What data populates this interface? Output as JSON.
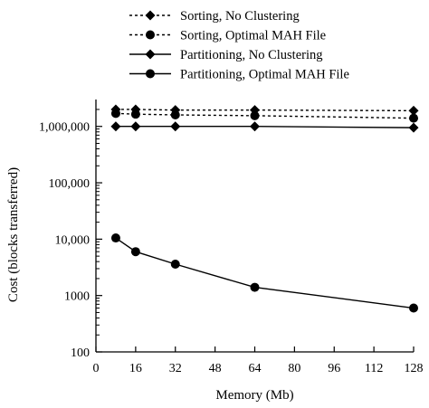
{
  "chart_data": {
    "type": "line",
    "xlabel": "Memory (Mb)",
    "ylabel": "Cost (blocks transferred)",
    "y_scale": "log",
    "xlim": [
      0,
      128
    ],
    "ylim": [
      100,
      3000000
    ],
    "grid": false,
    "legend_position": "top",
    "x_ticks": [
      0,
      16,
      32,
      48,
      64,
      80,
      96,
      112,
      128
    ],
    "x_tick_labels": [
      "0",
      "16",
      "32",
      "48",
      "64",
      "80",
      "96",
      "112",
      "128"
    ],
    "y_ticks": [
      100,
      1000,
      10000,
      100000,
      1000000
    ],
    "y_tick_labels": [
      "100",
      "1000",
      "10,000",
      "100,000",
      "1,000,000"
    ],
    "series": [
      {
        "name": "Sorting, No Clustering",
        "line_style": "dotted",
        "marker": "diamond",
        "x": [
          8,
          16,
          32,
          64,
          128
        ],
        "y": [
          2000000,
          2000000,
          1950000,
          1950000,
          1900000
        ]
      },
      {
        "name": "Sorting, Optimal MAH File",
        "line_style": "dotted",
        "marker": "circle",
        "x": [
          8,
          16,
          32,
          64,
          128
        ],
        "y": [
          1700000,
          1650000,
          1600000,
          1550000,
          1400000
        ]
      },
      {
        "name": "Partitioning, No Clustering",
        "line_style": "solid",
        "marker": "diamond",
        "x": [
          8,
          16,
          32,
          64,
          128
        ],
        "y": [
          1000000,
          1000000,
          1000000,
          1000000,
          950000
        ]
      },
      {
        "name": "Partitioning, Optimal MAH File",
        "line_style": "solid",
        "marker": "circle",
        "x": [
          8,
          16,
          32,
          64,
          128
        ],
        "y": [
          10500,
          6000,
          3600,
          1400,
          600
        ]
      }
    ]
  }
}
